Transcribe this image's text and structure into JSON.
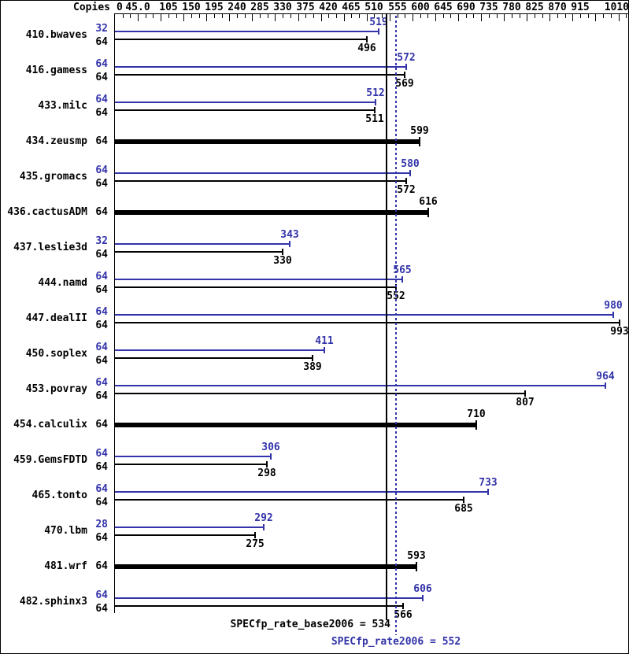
{
  "chart_data": {
    "type": "bar",
    "orientation": "horizontal",
    "title": "",
    "copies_header": "Copies",
    "xlim": [
      0,
      1010
    ],
    "grid": false,
    "colors": {
      "peak": "#3333aa",
      "base": "#000000",
      "background": "#ffffff"
    },
    "axis_ticks": [
      {
        "label": "0",
        "value": 0
      },
      {
        "label": "45.0",
        "value": 45
      },
      {
        "label": "105",
        "value": 105
      },
      {
        "label": "150",
        "value": 150
      },
      {
        "label": "195",
        "value": 195
      },
      {
        "label": "240",
        "value": 240
      },
      {
        "label": "285",
        "value": 285
      },
      {
        "label": "330",
        "value": 330
      },
      {
        "label": "375",
        "value": 375
      },
      {
        "label": "420",
        "value": 420
      },
      {
        "label": "465",
        "value": 465
      },
      {
        "label": "510",
        "value": 510
      },
      {
        "label": "555",
        "value": 555
      },
      {
        "label": "600",
        "value": 600
      },
      {
        "label": "645",
        "value": 645
      },
      {
        "label": "690",
        "value": 690
      },
      {
        "label": "735",
        "value": 735
      },
      {
        "label": "780",
        "value": 780
      },
      {
        "label": "825",
        "value": 825
      },
      {
        "label": "870",
        "value": 870
      },
      {
        "label": "915",
        "value": 915
      },
      {
        "label": "1010",
        "value": 1010
      }
    ],
    "benchmarks": [
      {
        "name": "410.bwaves",
        "bars": [
          {
            "run": "peak",
            "copies": "32",
            "value": 519
          },
          {
            "run": "base",
            "copies": "64",
            "value": 496
          }
        ]
      },
      {
        "name": "416.gamess",
        "bars": [
          {
            "run": "peak",
            "copies": "64",
            "value": 572
          },
          {
            "run": "base",
            "copies": "64",
            "value": 569
          }
        ]
      },
      {
        "name": "433.milc",
        "bars": [
          {
            "run": "peak",
            "copies": "64",
            "value": 512
          },
          {
            "run": "base",
            "copies": "64",
            "value": 511
          }
        ]
      },
      {
        "name": "434.zeusmp",
        "bars": [
          {
            "run": "both",
            "copies": "64",
            "value": 599
          }
        ]
      },
      {
        "name": "435.gromacs",
        "bars": [
          {
            "run": "peak",
            "copies": "64",
            "value": 580
          },
          {
            "run": "base",
            "copies": "64",
            "value": 572
          }
        ]
      },
      {
        "name": "436.cactusADM",
        "bars": [
          {
            "run": "both",
            "copies": "64",
            "value": 616
          }
        ]
      },
      {
        "name": "437.leslie3d",
        "bars": [
          {
            "run": "peak",
            "copies": "32",
            "value": 343
          },
          {
            "run": "base",
            "copies": "64",
            "value": 330
          }
        ]
      },
      {
        "name": "444.namd",
        "bars": [
          {
            "run": "peak",
            "copies": "64",
            "value": 565
          },
          {
            "run": "base",
            "copies": "64",
            "value": 552
          }
        ]
      },
      {
        "name": "447.dealII",
        "bars": [
          {
            "run": "peak",
            "copies": "64",
            "value": 980
          },
          {
            "run": "base",
            "copies": "64",
            "value": 993
          }
        ]
      },
      {
        "name": "450.soplex",
        "bars": [
          {
            "run": "peak",
            "copies": "64",
            "value": 411
          },
          {
            "run": "base",
            "copies": "64",
            "value": 389
          }
        ]
      },
      {
        "name": "453.povray",
        "bars": [
          {
            "run": "peak",
            "copies": "64",
            "value": 964
          },
          {
            "run": "base",
            "copies": "64",
            "value": 807
          }
        ]
      },
      {
        "name": "454.calculix",
        "bars": [
          {
            "run": "both",
            "copies": "64",
            "value": 710
          }
        ]
      },
      {
        "name": "459.GemsFDTD",
        "bars": [
          {
            "run": "peak",
            "copies": "64",
            "value": 306
          },
          {
            "run": "base",
            "copies": "64",
            "value": 298
          }
        ]
      },
      {
        "name": "465.tonto",
        "bars": [
          {
            "run": "peak",
            "copies": "64",
            "value": 733
          },
          {
            "run": "base",
            "copies": "64",
            "value": 685
          }
        ]
      },
      {
        "name": "470.lbm",
        "bars": [
          {
            "run": "peak",
            "copies": "28",
            "value": 292
          },
          {
            "run": "base",
            "copies": "64",
            "value": 275
          }
        ]
      },
      {
        "name": "481.wrf",
        "bars": [
          {
            "run": "both",
            "copies": "64",
            "value": 593
          }
        ]
      },
      {
        "name": "482.sphinx3",
        "bars": [
          {
            "run": "peak",
            "copies": "64",
            "value": 606
          },
          {
            "run": "base",
            "copies": "64",
            "value": 566
          }
        ]
      }
    ],
    "reference_lines": [
      {
        "label": "SPECfp_rate_base2006 = 534",
        "value": 534,
        "style": "solid",
        "color": "#000000"
      },
      {
        "label": "SPECfp_rate2006 = 552",
        "value": 552,
        "style": "dotted",
        "color": "#3333aa"
      }
    ]
  }
}
